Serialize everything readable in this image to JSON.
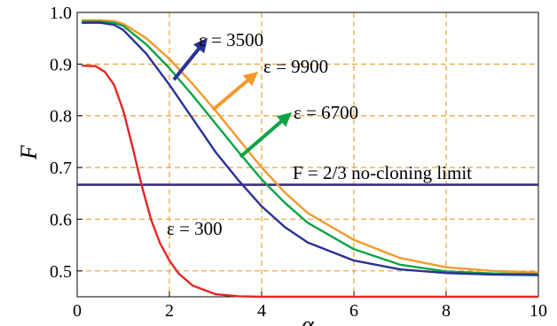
{
  "chart_data": {
    "type": "line",
    "title": "",
    "xlabel": "α",
    "ylabel": "F",
    "xlim": [
      0,
      10
    ],
    "ylim": [
      0.45,
      1.0
    ],
    "grid": true,
    "x_ticks": [
      "0",
      "2",
      "4",
      "6",
      "8",
      "10"
    ],
    "y_ticks": [
      "0.5",
      "0.6",
      "0.7",
      "0.8",
      "0.9",
      "1.0"
    ],
    "colors": {
      "eps_3500": "#2a3194",
      "eps_9900": "#f39a2b",
      "eps_6700": "#0ba345",
      "eps_300": "#e32626",
      "limit": "#3b2d7a",
      "grid": "#e8a33a"
    },
    "series": [
      {
        "name": "ε = 3500",
        "x": [
          0.1,
          0.5,
          0.8,
          1.0,
          1.5,
          2.0,
          2.5,
          3.0,
          3.5,
          4.0,
          4.5,
          5.0,
          6.0,
          7.0,
          8.0,
          9.0,
          10.0
        ],
        "y": [
          0.98,
          0.98,
          0.976,
          0.966,
          0.92,
          0.86,
          0.795,
          0.73,
          0.675,
          0.625,
          0.585,
          0.555,
          0.52,
          0.503,
          0.496,
          0.493,
          0.492
        ]
      },
      {
        "name": "ε = 9900",
        "x": [
          0.1,
          0.5,
          0.8,
          1.0,
          1.5,
          2.0,
          2.5,
          3.0,
          3.5,
          4.0,
          4.5,
          5.0,
          6.0,
          7.0,
          8.0,
          9.0,
          10.0
        ],
        "y": [
          0.985,
          0.985,
          0.983,
          0.978,
          0.95,
          0.91,
          0.862,
          0.81,
          0.755,
          0.7,
          0.652,
          0.612,
          0.56,
          0.525,
          0.507,
          0.5,
          0.497
        ]
      },
      {
        "name": "ε = 6700",
        "x": [
          0.1,
          0.5,
          0.8,
          1.0,
          1.5,
          2.0,
          2.5,
          3.0,
          3.5,
          4.0,
          4.5,
          5.0,
          6.0,
          7.0,
          8.0,
          9.0,
          10.0
        ],
        "y": [
          0.982,
          0.982,
          0.98,
          0.974,
          0.938,
          0.892,
          0.84,
          0.785,
          0.73,
          0.677,
          0.632,
          0.593,
          0.542,
          0.512,
          0.499,
          0.495,
          0.494
        ]
      },
      {
        "name": "ε = 300",
        "x": [
          0.1,
          0.4,
          0.6,
          0.8,
          1.0,
          1.2,
          1.4,
          1.6,
          1.8,
          2.0,
          2.2,
          2.5,
          3.0,
          3.5,
          4.0,
          5.0,
          10.0
        ],
        "y": [
          0.897,
          0.896,
          0.885,
          0.86,
          0.81,
          0.74,
          0.665,
          0.6,
          0.553,
          0.52,
          0.495,
          0.472,
          0.455,
          0.451,
          0.45,
          0.45,
          0.45
        ]
      }
    ],
    "reference_line": {
      "label": "F = 2/3 no-cloning limit",
      "y": 0.6667
    },
    "annotations": [
      {
        "text": "ε = 3500",
        "series": "ε = 3500"
      },
      {
        "text": "ε = 9900",
        "series": "ε = 9900"
      },
      {
        "text": "ε = 6700",
        "series": "ε = 6700"
      },
      {
        "text": "ε = 300",
        "series": "ε = 300"
      }
    ]
  }
}
